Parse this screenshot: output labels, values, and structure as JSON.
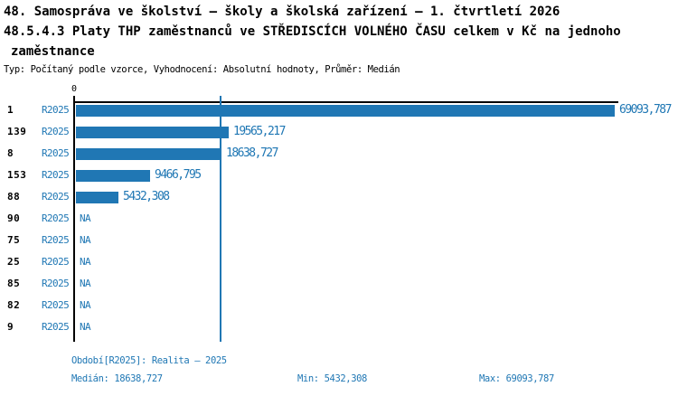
{
  "header": {
    "title_line1": "48. Samospráva ve školství – školy a školská zařízení – 1. čtvrtletí 2026",
    "title_line2": "48.5.4.3 Platy THP zaměstnanců ve STŘEDISCÍCH VOLNÉHO ČASU celkem v Kč na jednoho",
    "title_line3": "zaměstnance",
    "meta": "Typ: Počítaný podle vzorce, Vyhodnocení: Absolutní hodnoty, Průměr: Medián"
  },
  "chart_data": {
    "type": "bar",
    "orientation": "horizontal",
    "categories": [
      "1",
      "139",
      "8",
      "153",
      "88",
      "90",
      "75",
      "25",
      "85",
      "82",
      "9"
    ],
    "series_label": "R2025",
    "values": [
      69093.787,
      19565.217,
      18638.727,
      9466.795,
      5432.308,
      null,
      null,
      null,
      null,
      null,
      null
    ],
    "value_labels": [
      "69093,787",
      "19565,217",
      "18638,727",
      "9466,795",
      "5432,308",
      "NA",
      "NA",
      "NA",
      "NA",
      "NA",
      "NA"
    ],
    "na_text": "NA",
    "xlim": [
      0,
      69093.787
    ],
    "axis_tick_label": "0",
    "median_line_value": 18638.727,
    "grid": false,
    "legend": "none",
    "bar_color": "#2077B4",
    "median_line_color": "#2077B4"
  },
  "footer": {
    "period": "Období[R2025]: Realita – 2025",
    "median": "Medián: 18638,727",
    "min": "Min: 5432,308",
    "max": "Max: 69093,787"
  },
  "colors": {
    "accent_blue": "#1F77B4",
    "text_black": "#000000"
  }
}
